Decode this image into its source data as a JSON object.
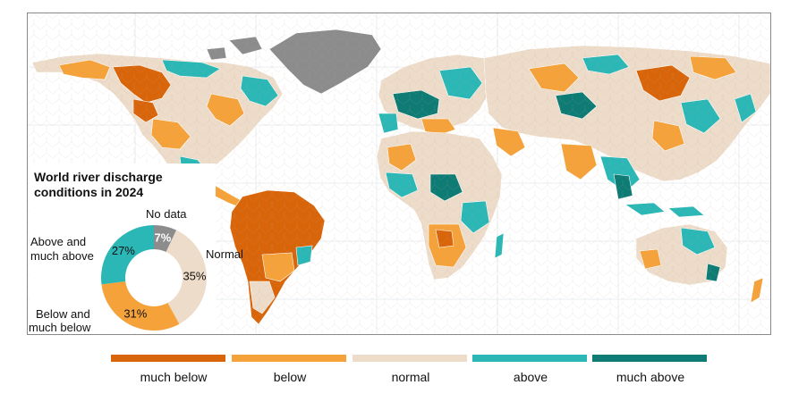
{
  "title": "World river discharge conditions in 2024",
  "colors": {
    "much_below": "#d9650b",
    "below": "#f5a23a",
    "normal": "#eddcc9",
    "above": "#2bb7b5",
    "much_above": "#0e7c74",
    "no_data": "#8c8c8c"
  },
  "donut": {
    "segments": [
      {
        "label": "No data",
        "percent": 7,
        "percent_text": "7%",
        "color_key": "no_data"
      },
      {
        "label": "Normal",
        "percent": 35,
        "percent_text": "35%",
        "color_key": "normal"
      },
      {
        "label": "Below and much below",
        "percent": 31,
        "percent_text": "31%",
        "color_key": "below"
      },
      {
        "label": "Above and much above",
        "percent": 27,
        "percent_text": "27%",
        "color_key": "above"
      }
    ],
    "label_no_data": "No data",
    "label_normal": "Normal",
    "label_above_1": "Above and",
    "label_above_2": "much above",
    "label_below_1": "Below and",
    "label_below_2": "much below"
  },
  "legend": [
    {
      "label": "much below",
      "color_key": "much_below"
    },
    {
      "label": "below",
      "color_key": "below"
    },
    {
      "label": "normal",
      "color_key": "normal"
    },
    {
      "label": "above",
      "color_key": "above"
    },
    {
      "label": "much above",
      "color_key": "much_above"
    }
  ]
}
